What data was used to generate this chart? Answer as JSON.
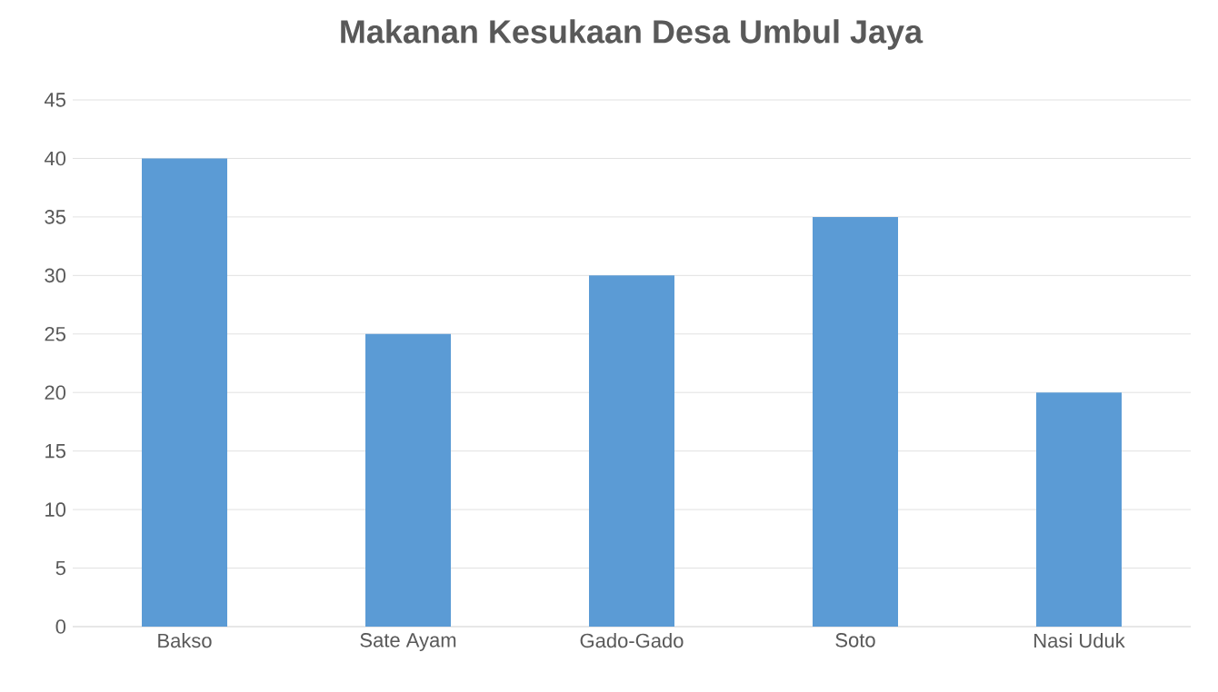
{
  "chart_data": {
    "type": "bar",
    "title": "Makanan Kesukaan Desa Umbul Jaya",
    "categories": [
      "Bakso",
      "Sate Ayam",
      "Gado-Gado",
      "Soto",
      "Nasi Uduk"
    ],
    "values": [
      40,
      25,
      30,
      35,
      20
    ],
    "color": "#5b9bd5",
    "ylim": [
      0,
      45
    ],
    "yticks": [
      0,
      5,
      10,
      15,
      20,
      25,
      30,
      35,
      40,
      45
    ],
    "grid": "y"
  }
}
